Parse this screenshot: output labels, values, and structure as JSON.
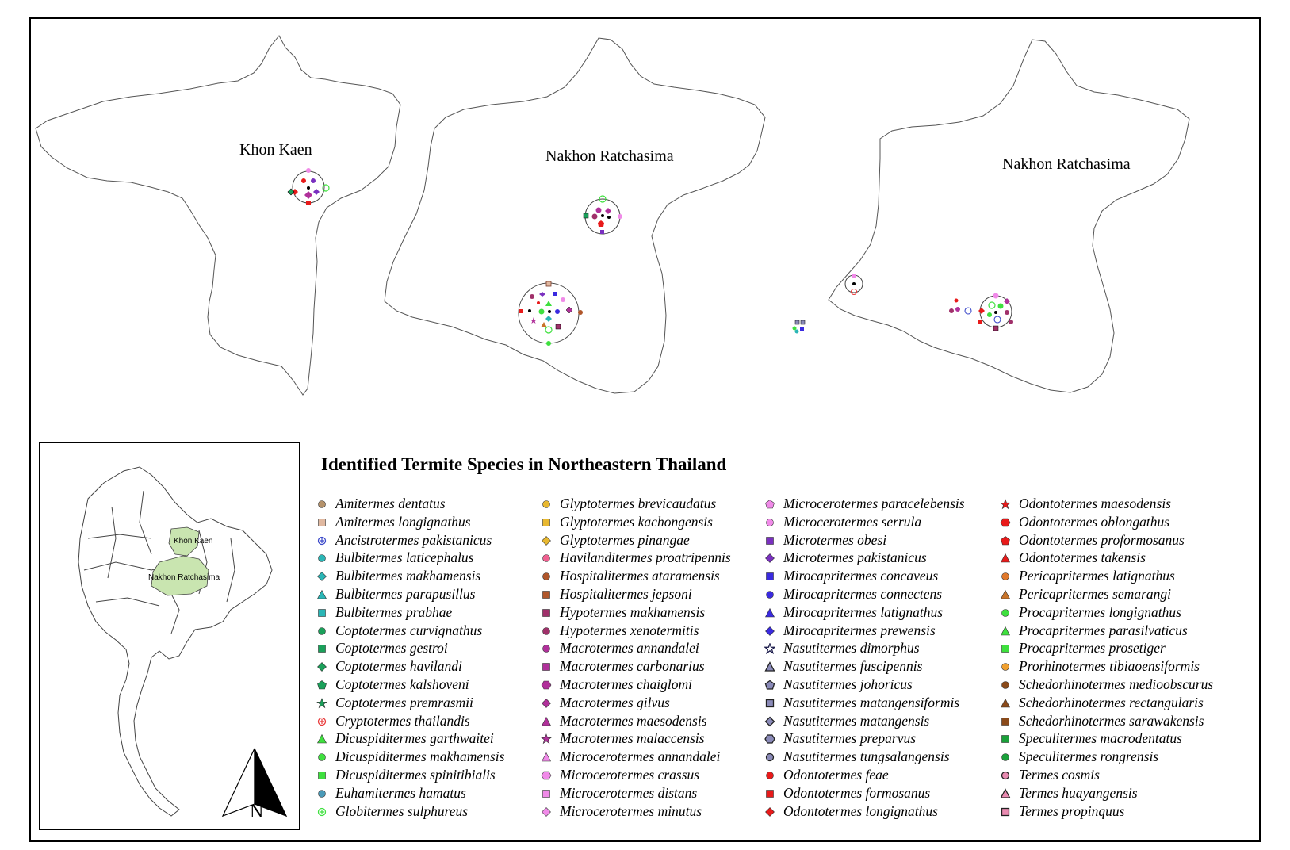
{
  "maps": {
    "khon_kaen_label": "Khon Kaen",
    "nakhon_ratchasima_label_1": "Nakhon Ratchasima",
    "nakhon_ratchasima_label_2": "Nakhon Ratchasima"
  },
  "inset": {
    "khon_kaen_label": "Khon Kaen",
    "nakhon_ratchasima_label": "Nakhon Ratchasima",
    "highlight_color": "#c9e5b0",
    "north_arrow_label": "N"
  },
  "legend": {
    "title": "Identified Termite Species in Northeastern Thailand",
    "columns": [
      [
        {
          "name": "Amitermes dentatus",
          "shape": "circle",
          "color": "#b5926b"
        },
        {
          "name": "Amitermes longignathus",
          "shape": "square",
          "color": "#e0b8a0"
        },
        {
          "name": "Ancistrotermes pakistanicus",
          "shape": "circle-plus",
          "color": "#3b49c9"
        },
        {
          "name": "Bulbitermes laticephalus",
          "shape": "circle",
          "color": "#2ab6b6"
        },
        {
          "name": "Bulbitermes makhamensis",
          "shape": "diamond",
          "color": "#2ab6b6"
        },
        {
          "name": "Bulbitermes parapusillus",
          "shape": "triangle",
          "color": "#2ab6b6"
        },
        {
          "name": "Bulbitermes prabhae",
          "shape": "square",
          "color": "#2ab6b6"
        },
        {
          "name": "Coptotermes curvignathus",
          "shape": "circle",
          "color": "#1aa05a"
        },
        {
          "name": "Coptotermes gestroi",
          "shape": "square",
          "color": "#1aa05a"
        },
        {
          "name": "Coptotermes havilandi",
          "shape": "diamond",
          "color": "#1aa05a"
        },
        {
          "name": "Coptotermes kalshoveni",
          "shape": "pentagon",
          "color": "#1aa05a"
        },
        {
          "name": "Coptotermes premrasmii",
          "shape": "star",
          "color": "#1aa05a"
        },
        {
          "name": "Cryptotermes thailandis",
          "shape": "circle-plus",
          "color": "#e83a3a"
        },
        {
          "name": "Dicuspiditermes garthwaitei",
          "shape": "triangle",
          "color": "#3ee03e"
        },
        {
          "name": "Dicuspiditermes makhamensis",
          "shape": "circle",
          "color": "#3ee03e"
        },
        {
          "name": "Dicuspiditermes spinitibialis",
          "shape": "square",
          "color": "#3ee03e"
        },
        {
          "name": "Euhamitermes hamatus",
          "shape": "circle",
          "color": "#4a9ab8"
        },
        {
          "name": "Globitermes sulphureus",
          "shape": "circle-plus",
          "color": "#3ee03e"
        }
      ],
      [
        {
          "name": "Glyptotermes brevicaudatus",
          "shape": "circle",
          "color": "#e8b830"
        },
        {
          "name": "Glyptotermes kachongensis",
          "shape": "square",
          "color": "#e8b830"
        },
        {
          "name": "Glyptotermes pinangae",
          "shape": "diamond",
          "color": "#e8b830"
        },
        {
          "name": "Havilanditermes proatripennis",
          "shape": "circle",
          "color": "#f06090"
        },
        {
          "name": "Hospitalitermes ataramensis",
          "shape": "circle",
          "color": "#b0562a"
        },
        {
          "name": "Hospitalitermes jepsoni",
          "shape": "square",
          "color": "#b0562a"
        },
        {
          "name": "Hypotermes makhamensis",
          "shape": "square",
          "color": "#a0306a"
        },
        {
          "name": "Hypotermes xenotermitis",
          "shape": "circle",
          "color": "#a0306a"
        },
        {
          "name": "Macrotermes annandalei",
          "shape": "circle",
          "color": "#b0309a"
        },
        {
          "name": "Macrotermes carbonarius",
          "shape": "square",
          "color": "#b0309a"
        },
        {
          "name": "Macrotermes chaiglomi",
          "shape": "hexagon",
          "color": "#b0309a"
        },
        {
          "name": "Macrotermes gilvus",
          "shape": "diamond",
          "color": "#b0309a"
        },
        {
          "name": "Macrotermes maesodensis",
          "shape": "triangle",
          "color": "#b0309a"
        },
        {
          "name": "Macrotermes malaccensis",
          "shape": "star",
          "color": "#b0309a"
        },
        {
          "name": "Microcerotermes annandalei",
          "shape": "triangle",
          "color": "#f08ae8"
        },
        {
          "name": "Microcerotermes crassus",
          "shape": "hexagon",
          "color": "#f08ae8"
        },
        {
          "name": "Microcerotermes distans",
          "shape": "square",
          "color": "#f08ae8"
        },
        {
          "name": "Microcerotermes minutus",
          "shape": "diamond",
          "color": "#f08ae8"
        }
      ],
      [
        {
          "name": "Microcerotermes paracelebensis",
          "shape": "pentagon",
          "color": "#f08ae8"
        },
        {
          "name": "Microcerotermes serrula",
          "shape": "circle",
          "color": "#f08ae8"
        },
        {
          "name": "Microtermes obesi",
          "shape": "square",
          "color": "#7a30c0"
        },
        {
          "name": "Microtermes pakistanicus",
          "shape": "diamond",
          "color": "#7a30c0"
        },
        {
          "name": "Mirocapritermes concaveus",
          "shape": "square",
          "color": "#3a2ae0"
        },
        {
          "name": "Mirocapritermes connectens",
          "shape": "circle",
          "color": "#3a2ae0"
        },
        {
          "name": "Mirocapritermes latignathus",
          "shape": "triangle",
          "color": "#3a2ae0"
        },
        {
          "name": "Mirocapritermes prewensis",
          "shape": "diamond",
          "color": "#3a2ae0"
        },
        {
          "name": "Nasutitermes dimorphus",
          "shape": "star-outline",
          "color": "#1a1a4a"
        },
        {
          "name": "Nasutitermes fuscipennis",
          "shape": "triangle-outline",
          "color": "#8a8ab8"
        },
        {
          "name": "Nasutitermes johoricus",
          "shape": "pentagon-outline",
          "color": "#8a8ab8"
        },
        {
          "name": "Nasutitermes matangensiformis",
          "shape": "square-outline",
          "color": "#8a8ab8"
        },
        {
          "name": "Nasutitermes matangensis",
          "shape": "diamond-outline",
          "color": "#8a8ab8"
        },
        {
          "name": "Nasutitermes preparvus",
          "shape": "hexagon-outline",
          "color": "#8a8ab8"
        },
        {
          "name": "Nasutitermes tungsalangensis",
          "shape": "circle-outline",
          "color": "#8a8ab8"
        },
        {
          "name": "Odontotermes feae",
          "shape": "circle",
          "color": "#e81a1a"
        },
        {
          "name": "Odontotermes formosanus",
          "shape": "square",
          "color": "#e81a1a"
        },
        {
          "name": "Odontotermes longignathus",
          "shape": "diamond",
          "color": "#e81a1a"
        }
      ],
      [
        {
          "name": "Odontotermes maesodensis",
          "shape": "star",
          "color": "#e81a1a"
        },
        {
          "name": "Odontotermes oblongathus",
          "shape": "hexagon",
          "color": "#e81a1a"
        },
        {
          "name": "Odontotermes proformosanus",
          "shape": "pentagon",
          "color": "#e81a1a"
        },
        {
          "name": "Odontotermes takensis",
          "shape": "triangle",
          "color": "#e81a1a"
        },
        {
          "name": "Pericapritermes latignathus",
          "shape": "circle",
          "color": "#e0782a"
        },
        {
          "name": "Pericapritermes semarangi",
          "shape": "triangle",
          "color": "#c8742a"
        },
        {
          "name": "Procapritermes longignathus",
          "shape": "circle",
          "color": "#3ee03e"
        },
        {
          "name": "Procapritermes parasilvaticus",
          "shape": "triangle",
          "color": "#3ee03e"
        },
        {
          "name": "Procapritermes prosetiger",
          "shape": "square",
          "color": "#3ee03e"
        },
        {
          "name": "Prorhinotermes tibiaoensiformis",
          "shape": "circle",
          "color": "#f0a030"
        },
        {
          "name": "Schedorhinotermes medioobscurus",
          "shape": "circle",
          "color": "#8a4a1a"
        },
        {
          "name": "Schedorhinotermes rectangularis",
          "shape": "triangle",
          "color": "#8a4a1a"
        },
        {
          "name": "Schedorhinotermes sarawakensis",
          "shape": "square",
          "color": "#8a4a1a"
        },
        {
          "name": "Speculitermes macrodentatus",
          "shape": "square",
          "color": "#1aa03a"
        },
        {
          "name": "Speculitermes rongrensis",
          "shape": "circle",
          "color": "#1aa03a"
        },
        {
          "name": "Termes cosmis",
          "shape": "circle-outline",
          "color": "#e88ab0"
        },
        {
          "name": "Termes huayangensis",
          "shape": "triangle-outline",
          "color": "#e88ab0"
        },
        {
          "name": "Termes propinquus",
          "shape": "square-outline",
          "color": "#e88ab0"
        }
      ]
    ]
  }
}
